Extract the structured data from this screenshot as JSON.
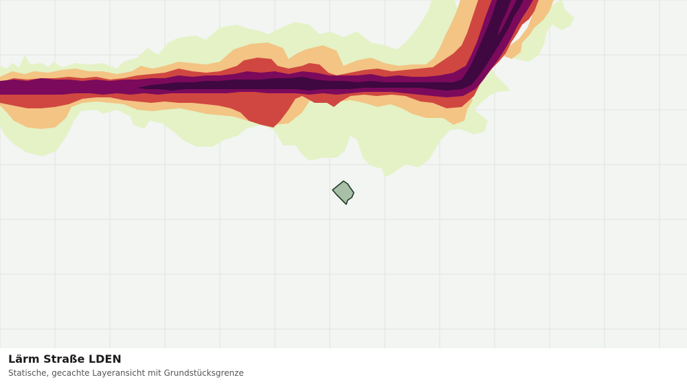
{
  "map": {
    "layer_title": "Lärm Straße LDEN",
    "layer_subtitle": "Statische, gecachte Layeransicht mit Grundstücksgrenze",
    "noise_band_colors": {
      "band_1": "#e4f2c6",
      "band_2": "#f3c484",
      "band_3": "#cf4740",
      "band_4": "#7b0a5c",
      "band_5": "#3f0840"
    },
    "parcel_fill": "#a9bfa8",
    "parcel_stroke": "#1e3a26",
    "background_color": "#f3f5f3",
    "grid_color": "#dfe2df"
  }
}
